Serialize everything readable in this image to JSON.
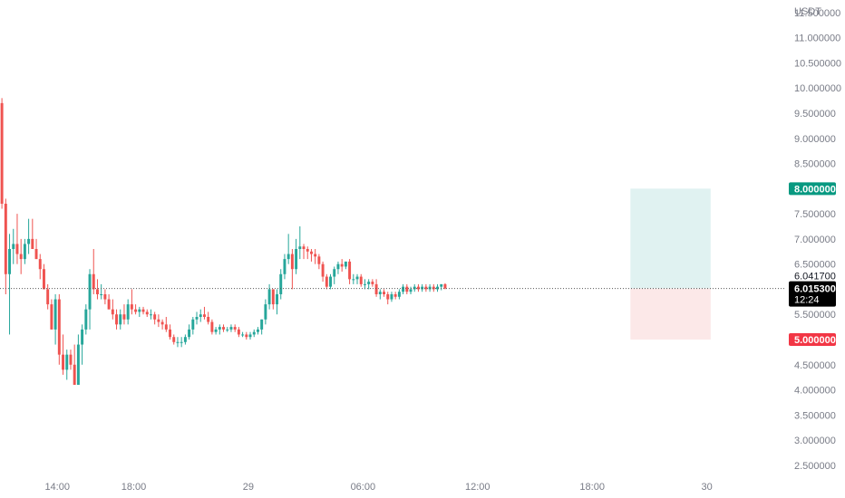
{
  "chart_data": {
    "type": "candlestick",
    "currency": "USDT",
    "y_ticks": [
      "11.500000",
      "11.000000",
      "10.500000",
      "10.000000",
      "9.500000",
      "9.000000",
      "8.500000",
      "8.000000",
      "7.500000",
      "7.000000",
      "6.500000",
      "6.000000",
      "5.500000",
      "5.000000",
      "4.500000",
      "4.000000",
      "3.500000",
      "3.000000",
      "2.500000"
    ],
    "y_tick_values": [
      11.5,
      11.0,
      10.5,
      10.0,
      9.5,
      9.0,
      8.5,
      8.0,
      7.5,
      7.0,
      6.5,
      6.0,
      5.5,
      5.0,
      4.5,
      4.0,
      3.5,
      3.0,
      2.5
    ],
    "ylim": [
      2.3,
      11.75
    ],
    "x_labels": [
      {
        "label": "14:00",
        "hour": 14
      },
      {
        "label": "18:00",
        "hour": 18
      },
      {
        "label": "29",
        "hour": 24
      },
      {
        "label": "06:00",
        "hour": 30
      },
      {
        "label": "12:00",
        "hour": 36
      },
      {
        "label": "18:00",
        "hour": 42
      },
      {
        "label": "30",
        "hour": 48
      }
    ],
    "x_range_hours": [
      11.0,
      52.1
    ],
    "bar_hours": 0.2,
    "candles_first_hour": 11.0,
    "candles": [
      [
        9.7,
        9.8,
        7.6,
        7.7
      ],
      [
        7.7,
        7.8,
        5.9,
        6.3
      ],
      [
        6.3,
        7.1,
        5.1,
        6.8
      ],
      [
        6.8,
        7.2,
        6.5,
        6.9
      ],
      [
        6.9,
        7.5,
        6.5,
        6.7
      ],
      [
        6.7,
        7.0,
        6.3,
        6.6
      ],
      [
        6.6,
        7.0,
        6.5,
        6.9
      ],
      [
        6.9,
        7.4,
        6.7,
        7.0
      ],
      [
        7.0,
        7.4,
        6.8,
        6.8
      ],
      [
        6.8,
        7.0,
        6.6,
        6.6
      ],
      [
        6.6,
        6.7,
        6.2,
        6.4
      ],
      [
        6.4,
        6.5,
        6.0,
        6.0
      ],
      [
        6.0,
        6.1,
        5.6,
        5.7
      ],
      [
        5.7,
        5.8,
        5.2,
        5.2
      ],
      [
        5.2,
        5.9,
        4.9,
        5.8
      ],
      [
        5.8,
        5.9,
        4.5,
        4.7
      ],
      [
        4.7,
        5.1,
        4.3,
        4.4
      ],
      [
        4.4,
        4.8,
        4.2,
        4.7
      ],
      [
        4.7,
        4.8,
        4.4,
        4.5
      ],
      [
        4.5,
        4.9,
        4.1,
        4.1
      ],
      [
        4.1,
        5.1,
        4.1,
        4.9
      ],
      [
        4.9,
        5.3,
        4.5,
        5.2
      ],
      [
        5.2,
        5.7,
        5.1,
        5.6
      ],
      [
        5.6,
        6.4,
        5.2,
        6.3
      ],
      [
        6.3,
        6.8,
        5.9,
        6.0
      ],
      [
        6.0,
        6.2,
        5.8,
        5.9
      ],
      [
        5.9,
        6.1,
        5.8,
        5.9
      ],
      [
        5.9,
        6.0,
        5.7,
        5.8
      ],
      [
        5.8,
        5.9,
        5.6,
        5.6
      ],
      [
        5.6,
        5.8,
        5.4,
        5.5
      ],
      [
        5.5,
        5.6,
        5.2,
        5.3
      ],
      [
        5.3,
        5.6,
        5.2,
        5.5
      ],
      [
        5.5,
        5.7,
        5.3,
        5.4
      ],
      [
        5.4,
        5.8,
        5.3,
        5.7
      ],
      [
        5.7,
        6.0,
        5.5,
        5.6
      ],
      [
        5.6,
        5.7,
        5.5,
        5.55
      ],
      [
        5.55,
        5.65,
        5.45,
        5.6
      ],
      [
        5.6,
        5.65,
        5.5,
        5.55
      ],
      [
        5.55,
        5.6,
        5.45,
        5.5
      ],
      [
        5.5,
        5.6,
        5.4,
        5.5
      ],
      [
        5.5,
        5.55,
        5.3,
        5.4
      ],
      [
        5.4,
        5.5,
        5.25,
        5.35
      ],
      [
        5.35,
        5.4,
        5.2,
        5.3
      ],
      [
        5.3,
        5.45,
        5.15,
        5.2
      ],
      [
        5.2,
        5.3,
        5.0,
        5.05
      ],
      [
        5.05,
        5.1,
        4.9,
        4.95
      ],
      [
        4.95,
        5.05,
        4.85,
        4.95
      ],
      [
        4.95,
        5.05,
        4.85,
        4.95
      ],
      [
        4.95,
        5.1,
        4.9,
        5.05
      ],
      [
        5.05,
        5.3,
        5.0,
        5.2
      ],
      [
        5.2,
        5.45,
        5.1,
        5.4
      ],
      [
        5.4,
        5.55,
        5.3,
        5.45
      ],
      [
        5.45,
        5.6,
        5.35,
        5.5
      ],
      [
        5.5,
        5.65,
        5.4,
        5.45
      ],
      [
        5.45,
        5.55,
        5.3,
        5.35
      ],
      [
        5.35,
        5.4,
        5.1,
        5.15
      ],
      [
        5.15,
        5.25,
        5.1,
        5.2
      ],
      [
        5.2,
        5.3,
        5.1,
        5.25
      ],
      [
        5.25,
        5.3,
        5.15,
        5.2
      ],
      [
        5.2,
        5.25,
        5.15,
        5.2
      ],
      [
        5.2,
        5.3,
        5.15,
        5.25
      ],
      [
        5.25,
        5.3,
        5.15,
        5.2
      ],
      [
        5.2,
        5.25,
        5.05,
        5.1
      ],
      [
        5.1,
        5.15,
        5.05,
        5.1
      ],
      [
        5.1,
        5.15,
        5.0,
        5.05
      ],
      [
        5.05,
        5.15,
        5.0,
        5.1
      ],
      [
        5.1,
        5.2,
        5.05,
        5.15
      ],
      [
        5.15,
        5.25,
        5.1,
        5.2
      ],
      [
        5.2,
        5.4,
        5.1,
        5.4
      ],
      [
        5.4,
        5.8,
        5.3,
        5.7
      ],
      [
        5.7,
        6.1,
        5.6,
        6.0
      ],
      [
        6.0,
        6.0,
        5.6,
        5.7
      ],
      [
        5.7,
        6.0,
        5.5,
        5.9
      ],
      [
        5.9,
        6.4,
        5.8,
        6.3
      ],
      [
        6.3,
        6.7,
        6.2,
        6.6
      ],
      [
        6.6,
        7.1,
        6.5,
        6.7
      ],
      [
        6.7,
        6.8,
        6.0,
        6.4
      ],
      [
        6.4,
        7.0,
        6.3,
        6.8
      ],
      [
        6.8,
        7.25,
        6.6,
        6.85
      ],
      [
        6.85,
        6.9,
        6.6,
        6.8
      ],
      [
        6.8,
        6.85,
        6.6,
        6.75
      ],
      [
        6.75,
        6.8,
        6.55,
        6.7
      ],
      [
        6.7,
        6.8,
        6.5,
        6.65
      ],
      [
        6.65,
        6.7,
        6.4,
        6.5
      ],
      [
        6.5,
        6.55,
        6.15,
        6.25
      ],
      [
        6.25,
        6.3,
        6.0,
        6.05
      ],
      [
        6.05,
        6.3,
        6.0,
        6.25
      ],
      [
        6.25,
        6.45,
        6.1,
        6.4
      ],
      [
        6.4,
        6.55,
        6.3,
        6.5
      ],
      [
        6.5,
        6.6,
        6.35,
        6.45
      ],
      [
        6.45,
        6.55,
        6.4,
        6.55
      ],
      [
        6.55,
        6.6,
        6.1,
        6.2
      ],
      [
        6.2,
        6.3,
        6.1,
        6.2
      ],
      [
        6.2,
        6.3,
        6.1,
        6.25
      ],
      [
        6.25,
        6.3,
        6.05,
        6.1
      ],
      [
        6.1,
        6.2,
        6.0,
        6.1
      ],
      [
        6.1,
        6.2,
        6.0,
        6.15
      ],
      [
        6.15,
        6.2,
        6.05,
        6.1
      ],
      [
        6.1,
        6.2,
        5.85,
        5.9
      ],
      [
        5.9,
        6.0,
        5.8,
        5.95
      ],
      [
        5.95,
        6.0,
        5.85,
        5.9
      ],
      [
        5.9,
        5.95,
        5.7,
        5.8
      ],
      [
        5.8,
        5.95,
        5.75,
        5.9
      ],
      [
        5.9,
        5.95,
        5.8,
        5.85
      ],
      [
        5.85,
        6.0,
        5.8,
        5.95
      ],
      [
        5.95,
        6.1,
        5.9,
        6.05
      ],
      [
        6.05,
        6.1,
        5.9,
        5.95
      ],
      [
        5.95,
        6.05,
        5.9,
        6.0
      ],
      [
        6.0,
        6.1,
        5.95,
        6.05
      ],
      [
        6.05,
        6.1,
        5.95,
        6.0
      ],
      [
        6.0,
        6.1,
        5.95,
        6.05
      ],
      [
        6.05,
        6.1,
        5.95,
        6.0
      ],
      [
        6.0,
        6.1,
        5.95,
        6.05
      ],
      [
        6.05,
        6.1,
        5.95,
        6.0
      ],
      [
        6.0,
        6.1,
        5.95,
        6.05
      ],
      [
        6.05,
        6.1,
        5.98,
        6.1
      ],
      [
        6.1,
        6.12,
        6.0,
        6.0153
      ]
    ],
    "position": {
      "entry": 6.0153,
      "take_profit": 8.0,
      "stop_loss": 5.0,
      "start_hour": 44.0,
      "end_hour": 48.2
    },
    "tags": {
      "take_profit_label": "8.000000",
      "stop_loss_label": "5.000000",
      "prev_close_label": "6.041700",
      "last_price_label": "6.015300",
      "countdown_label": "12:24"
    },
    "colors": {
      "up": "#26a69a",
      "down": "#ef5350",
      "tp_zone": "#e0f2f1",
      "sl_zone": "#fce8e8",
      "tp_tag": "#089981",
      "sl_tag": "#f23645",
      "last_price_tag": "#000000",
      "axis_text": "#787b86",
      "price_line": "#555555"
    }
  }
}
